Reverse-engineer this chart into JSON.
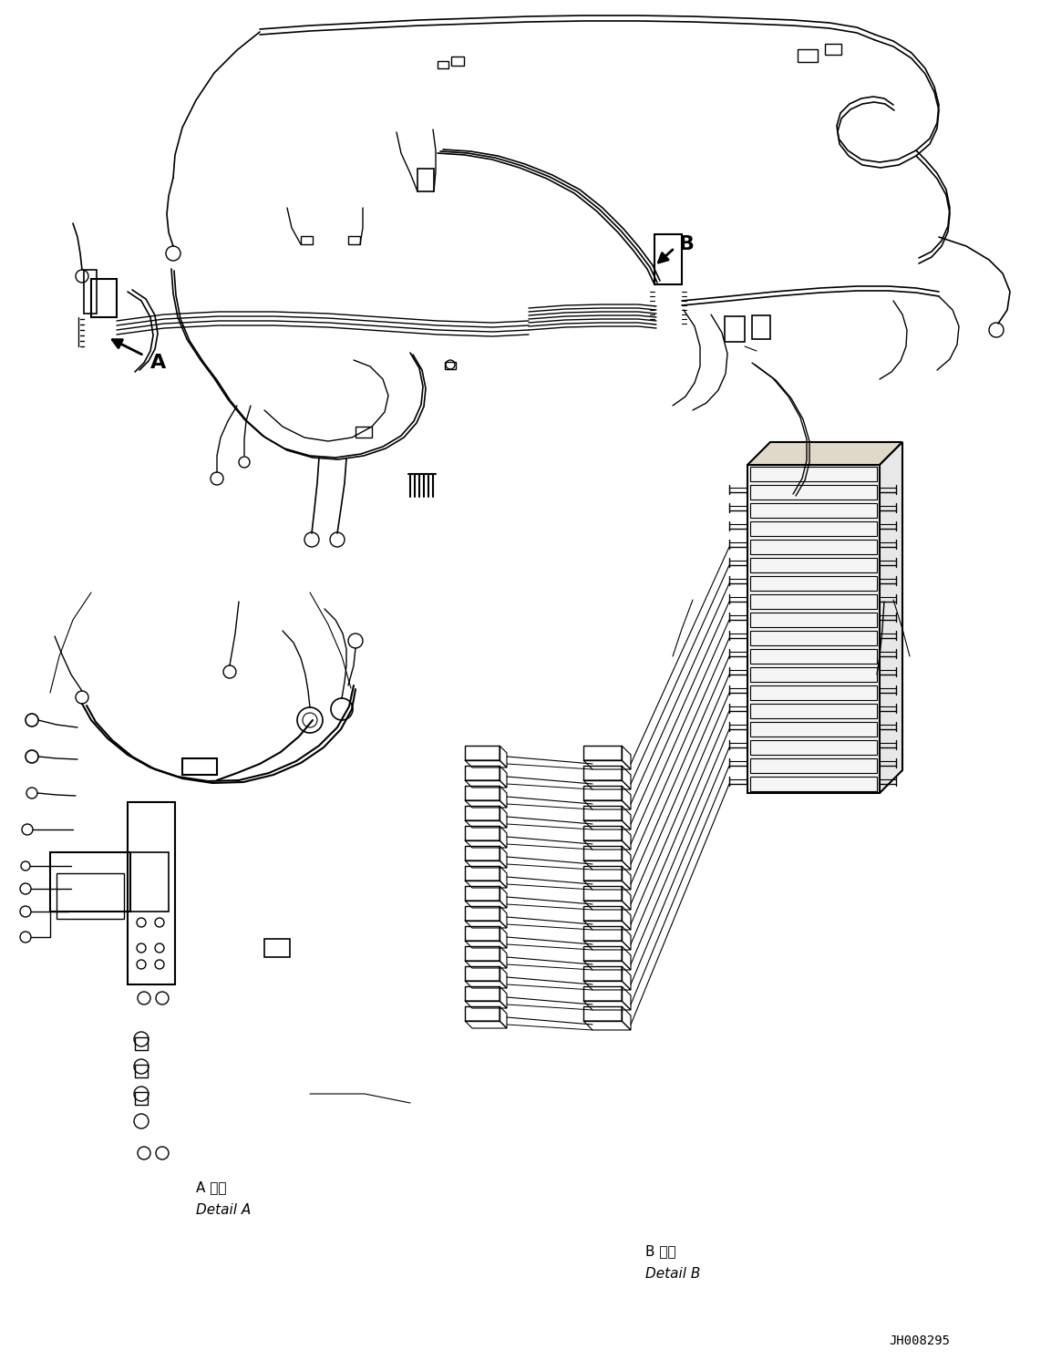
{
  "background_color": "#ffffff",
  "line_color": "#000000",
  "figsize": [
    11.53,
    14.92
  ],
  "dpi": 100,
  "detail_A_japanese": "A 詳細",
  "detail_A_english": "Detail A",
  "detail_B_japanese": "B 詳細",
  "detail_B_english": "Detail B",
  "part_number": "JH008295",
  "label_A": "A",
  "label_B": "B"
}
